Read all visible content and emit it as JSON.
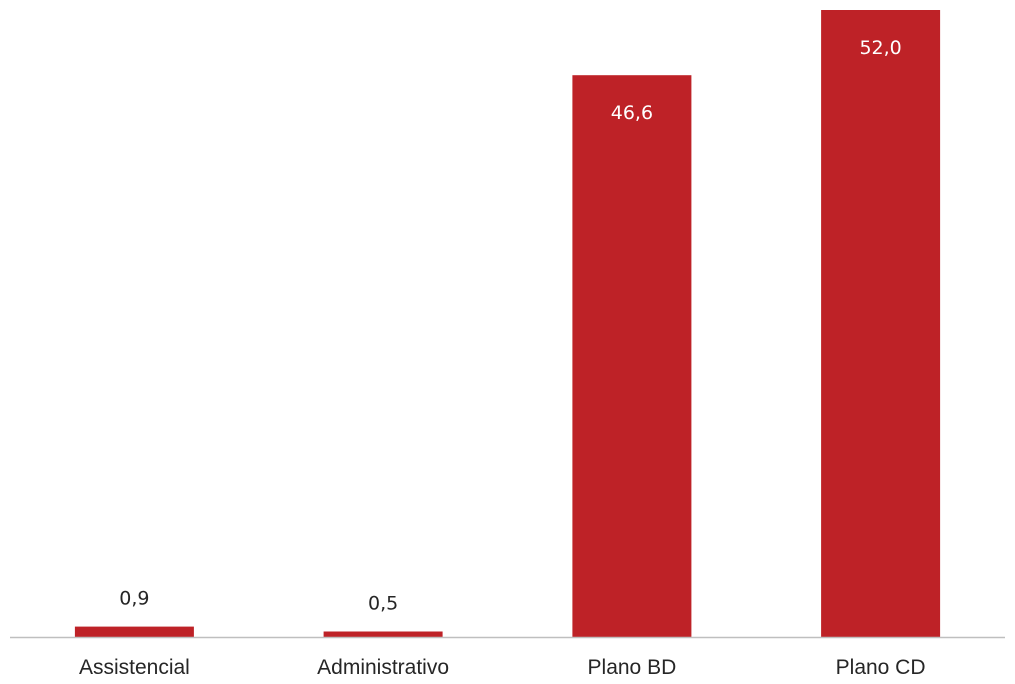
{
  "chart_data": {
    "type": "bar",
    "categories": [
      "Assistencial",
      "Administrativo",
      "Plano BD",
      "Plano CD"
    ],
    "values": [
      0.9,
      0.5,
      46.6,
      52.0
    ],
    "value_labels": [
      "0,9",
      "0,5",
      "46,6",
      "52,0"
    ],
    "title": "",
    "xlabel": "",
    "ylabel": "",
    "ylim": [
      0,
      52
    ],
    "grid": false,
    "legend": "none",
    "bar_color": "#be2227",
    "axis_color": "#bfbfbf"
  }
}
